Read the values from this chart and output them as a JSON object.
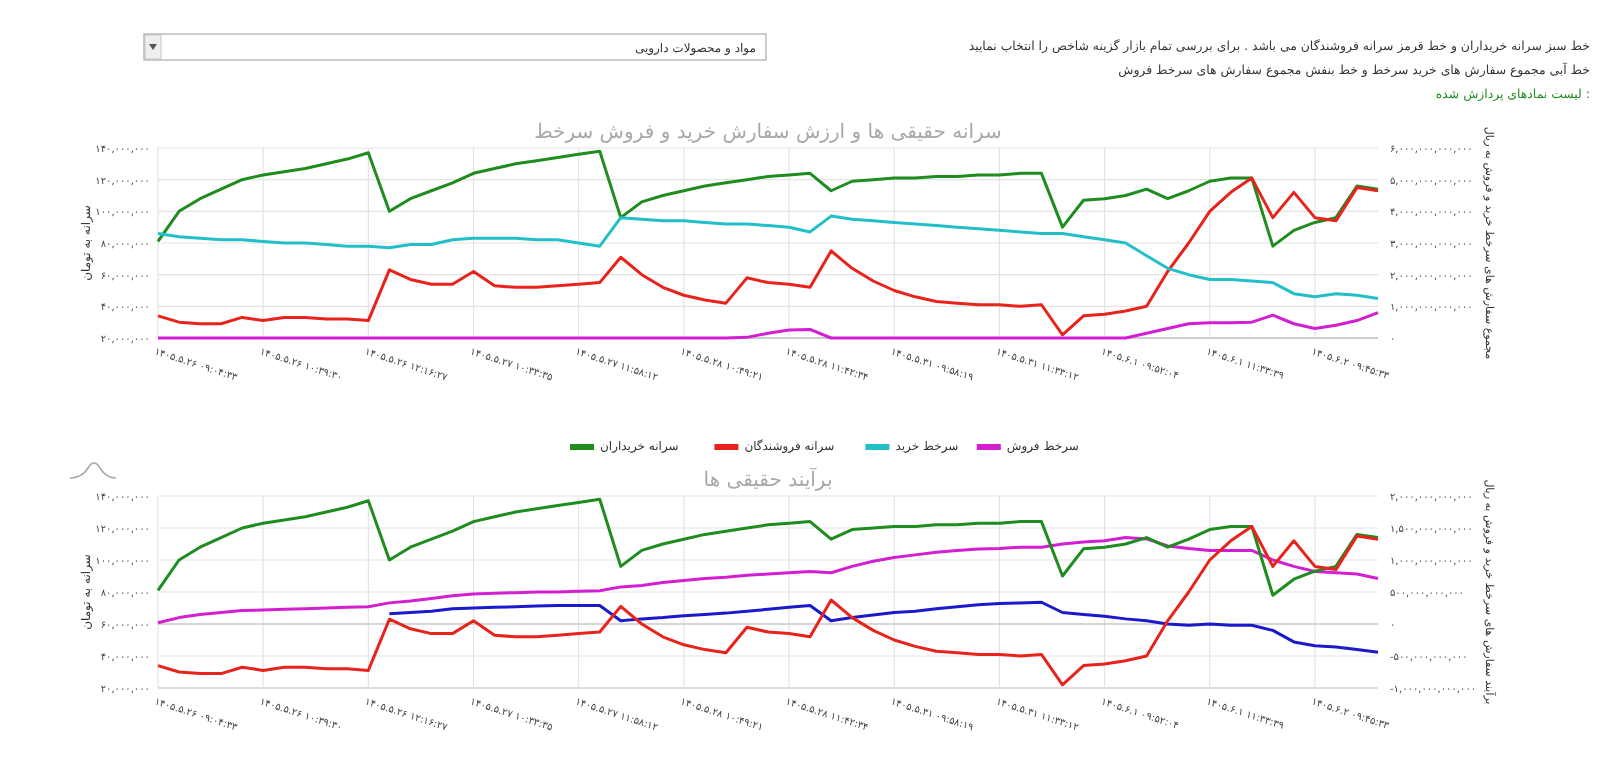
{
  "chart_data": [
    {
      "type": "line",
      "title": "سرانه حقیقی ها و ارزش سفارش خرید و فروش سرخط",
      "ylabel": "سرانه به تومان",
      "y2label": "مجموع سفارش های سرخط خرید و فروش به ریال",
      "annotations": [
        "مواد و محصولات دارویی",
        "خط سبز سرانه خریداران و خط قرمز سرانه فروشندگان می باشد . برای بررسی تمام بازار گزینه شاخص را انتخاب نمایید",
        "خط آبی مجموع سفارش های خرید سرخط و خط بنفش مجموع سفارش های سرخط فروش",
        "لیست نمادهای پردازش شده :"
      ],
      "categories": [
        "۱۴۰۵.۵.۲۶ ۰۹:۰۴:۳۳",
        null,
        null,
        null,
        null,
        "۱۴۰۵.۵.۲۶ ۱۰:۳۹:۳۰",
        null,
        null,
        null,
        null,
        "۱۴۰۵.۵.۲۶ ۱۲:۱۶:۲۷",
        null,
        null,
        null,
        null,
        "۱۴۰۵.۵.۲۷ ۱۰:۳۳:۳۵",
        null,
        null,
        null,
        null,
        "۱۴۰۵.۵.۲۷ ۱۱:۵۸:۱۲",
        null,
        null,
        null,
        null,
        "۱۴۰۵.۵.۲۸ ۱۰:۴۹:۲۱",
        null,
        null,
        null,
        null,
        "۱۴۰۵.۵.۲۸ ۱۱:۴۲:۳۴",
        null,
        null,
        null,
        null,
        "۱۴۰۵.۵.۳۱ ۰۹:۵۸:۱۹",
        null,
        null,
        null,
        null,
        "۱۴۰۵.۵.۳۱ ۱۱:۳۳:۱۲",
        null,
        null,
        null,
        null,
        "۱۴۰۵.۶.۱ ۰۹:۵۲:۰۴",
        null,
        null,
        null,
        null,
        "۱۴۰۵.۶.۱ ۱۱:۳۳:۳۹",
        null,
        null,
        null,
        null,
        "۱۴۰۵.۶.۲ ۰۹:۴۵:۳۳",
        null,
        null,
        null
      ],
      "series": [
        {
          "name": "سرانه خریداران",
          "color": "#1e8c1e",
          "values": [
            81000000.0,
            100000000.0,
            108000000.0,
            114000000.0,
            120000000.0,
            123000000.0,
            125000000.0,
            127000000.0,
            130000000.0,
            133000000.0,
            137000000.0,
            100000000.0,
            108000000.0,
            113000000.0,
            118000000.0,
            124000000.0,
            127000000.0,
            130000000.0,
            132000000.0,
            134000000.0,
            136000000.0,
            138000000.0,
            96000000.0,
            106000000.0,
            110000000.0,
            113000000.0,
            116000000.0,
            118000000.0,
            120000000.0,
            122000000.0,
            123000000.0,
            124000000.0,
            113000000.0,
            119000000.0,
            120000000.0,
            121000000.0,
            121000000.0,
            122000000.0,
            122000000.0,
            123000000.0,
            123000000.0,
            124000000.0,
            124000000.0,
            90000000.0,
            107000000.0,
            108000000.0,
            110000000.0,
            114000000.0,
            108000000.0,
            113000000.0,
            119000000.0,
            121000000.0,
            121000000.0,
            78000000.0,
            88000000.0,
            93000000.0,
            96000000.0,
            116000000.0,
            114000000.0
          ]
        },
        {
          "name": "سرانه فروشندگان",
          "color": "#e8231c",
          "values": [
            34000000.0,
            30000000.0,
            29000000.0,
            29000000.0,
            33000000.0,
            31000000.0,
            33000000.0,
            33000000.0,
            32000000.0,
            32000000.0,
            31000000.0,
            63000000.0,
            57000000.0,
            54000000.0,
            54000000.0,
            62000000.0,
            53000000.0,
            52000000.0,
            52000000.0,
            53000000.0,
            54000000.0,
            55000000.0,
            71000000.0,
            60000000.0,
            52000000.0,
            47000000.0,
            44000000.0,
            42000000.0,
            58000000.0,
            55000000.0,
            54000000.0,
            52000000.0,
            75000000.0,
            64000000.0,
            56000000.0,
            50000000.0,
            46000000.0,
            43000000.0,
            42000000.0,
            41000000.0,
            41000000.0,
            40000000.0,
            41000000.0,
            22000000.0,
            34000000.0,
            35000000.0,
            37000000.0,
            40000000.0,
            62000000.0,
            80000000.0,
            100000000.0,
            112000000.0,
            121000000.0,
            96000000.0,
            112000000.0,
            96000000.0,
            94000000.0,
            115000000.0,
            113000000.0
          ]
        },
        {
          "name": "سرخط خرید",
          "color": "#22bfc8",
          "axis": "y2",
          "values": [
            3300000000000.0,
            3200000000000.0,
            3150000000000.0,
            3100000000000.0,
            3100000000000.0,
            3050000000000.0,
            3000000000000.0,
            3000000000000.0,
            2950000000000.0,
            2900000000000.0,
            2900000000000.0,
            2850000000000.0,
            2950000000000.0,
            2950000000000.0,
            3100000000000.0,
            3150000000000.0,
            3150000000000.0,
            3150000000000.0,
            3100000000000.0,
            3100000000000.0,
            3000000000000.0,
            2900000000000.0,
            3800000000000.0,
            3750000000000.0,
            3700000000000.0,
            3700000000000.0,
            3650000000000.0,
            3600000000000.0,
            3600000000000.0,
            3550000000000.0,
            3500000000000.0,
            3350000000000.0,
            3850000000000.0,
            3750000000000.0,
            3700000000000.0,
            3650000000000.0,
            3600000000000.0,
            3550000000000.0,
            3500000000000.0,
            3450000000000.0,
            3400000000000.0,
            3350000000000.0,
            3300000000000.0,
            3300000000000.0,
            3200000000000.0,
            3100000000000.0,
            3000000000000.0,
            2600000000000.0,
            2200000000000.0,
            2000000000000.0,
            1850000000000.0,
            1850000000000.0,
            1800000000000.0,
            1750000000000.0,
            1400000000000.0,
            1300000000000.0,
            1400000000000.0,
            1350000000000.0,
            1250000000000.0
          ]
        },
        {
          "name": "سرخط فروش",
          "color": "#d21fd2",
          "axis": "y2",
          "values": [
            0,
            0,
            0,
            0,
            0,
            0,
            0,
            0,
            0,
            0,
            0,
            0,
            0,
            0,
            0,
            0,
            0,
            0,
            0,
            0,
            0,
            0,
            0,
            0,
            0,
            0,
            0,
            0,
            20000000000.0,
            150000000000.0,
            250000000000.0,
            270000000000.0,
            0,
            0,
            0,
            0,
            0,
            0,
            0,
            0,
            0,
            0,
            0,
            0,
            0,
            0,
            0,
            150000000000.0,
            300000000000.0,
            450000000000.0,
            480000000000.0,
            480000000000.0,
            500000000000.0,
            720000000000.0,
            450000000000.0,
            300000000000.0,
            400000000000.0,
            550000000000.0,
            800000000000.0
          ]
        }
      ],
      "ylim": [
        20000000,
        140000000
      ],
      "yticks": [
        {
          "value": 20000000,
          "label": "۲۰,۰۰۰,۰۰۰"
        },
        {
          "value": 40000000,
          "label": "۴۰,۰۰۰,۰۰۰"
        },
        {
          "value": 60000000,
          "label": "۶۰,۰۰۰,۰۰۰"
        },
        {
          "value": 80000000,
          "label": "۸۰,۰۰۰,۰۰۰"
        },
        {
          "value": 100000000,
          "label": "۱۰۰,۰۰۰,۰۰۰"
        },
        {
          "value": 120000000,
          "label": "۱۲۰,۰۰۰,۰۰۰"
        },
        {
          "value": 140000000,
          "label": "۱۴۰,۰۰۰,۰۰۰"
        }
      ],
      "y2lim": [
        0,
        6000000000000.0
      ],
      "y2ticks": [
        {
          "value": 0,
          "label": "۰"
        },
        {
          "value": 1000000000000.0,
          "label": "۱,۰۰۰,۰۰۰,۰۰۰,۰۰۰"
        },
        {
          "value": 2000000000000.0,
          "label": "۲,۰۰۰,۰۰۰,۰۰۰,۰۰۰"
        },
        {
          "value": 3000000000000.0,
          "label": "۳,۰۰۰,۰۰۰,۰۰۰,۰۰۰"
        },
        {
          "value": 4000000000000.0,
          "label": "۴,۰۰۰,۰۰۰,۰۰۰,۰۰۰"
        },
        {
          "value": 5000000000000.0,
          "label": "۵,۰۰۰,۰۰۰,۰۰۰,۰۰۰"
        },
        {
          "value": 6000000000000.0,
          "label": "۶,۰۰۰,۰۰۰,۰۰۰,۰۰۰"
        }
      ],
      "grid": true,
      "legend": "bottom"
    },
    {
      "type": "line",
      "title": "برآیند حقیقی ها",
      "ylabel": "سرانه به تومان",
      "y2label": "برآیند سفارش های سرخط خرید و فروش به ریال",
      "categories": [
        "۱۴۰۵.۵.۲۶ ۰۹:۰۴:۳۳",
        null,
        null,
        null,
        null,
        "۱۴۰۵.۵.۲۶ ۱۰:۳۹:۳۰",
        null,
        null,
        null,
        null,
        "۱۴۰۵.۵.۲۶ ۱۲:۱۶:۲۷",
        null,
        null,
        null,
        null,
        "۱۴۰۵.۵.۲۷ ۱۰:۳۳:۳۵",
        null,
        null,
        null,
        null,
        "۱۴۰۵.۵.۲۷ ۱۱:۵۸:۱۲",
        null,
        null,
        null,
        null,
        "۱۴۰۵.۵.۲۸ ۱۰:۴۹:۲۱",
        null,
        null,
        null,
        null,
        "۱۴۰۵.۵.۲۸ ۱۱:۴۲:۳۴",
        null,
        null,
        null,
        null,
        "۱۴۰۵.۵.۳۱ ۰۹:۵۸:۱۹",
        null,
        null,
        null,
        null,
        "۱۴۰۵.۵.۳۱ ۱۱:۳۳:۱۲",
        null,
        null,
        null,
        null,
        "۱۴۰۵.۶.۱ ۰۹:۵۲:۰۴",
        null,
        null,
        null,
        null,
        "۱۴۰۵.۶.۱ ۱۱:۳۳:۳۹",
        null,
        null,
        null,
        null,
        "۱۴۰۵.۶.۲ ۰۹:۴۵:۳۳",
        null,
        null,
        null
      ],
      "series": [
        {
          "color": "#d21fd2",
          "axis": "y2",
          "values": [
            20000000000.0,
            100000000000.0,
            150000000000.0,
            180000000000.0,
            210000000000.0,
            220000000000.0,
            230000000000.0,
            240000000000.0,
            250000000000.0,
            260000000000.0,
            270000000000.0,
            330000000000.0,
            360000000000.0,
            400000000000.0,
            440000000000.0,
            470000000000.0,
            480000000000.0,
            490000000000.0,
            500000000000.0,
            500000000000.0,
            510000000000.0,
            520000000000.0,
            580000000000.0,
            600000000000.0,
            650000000000.0,
            680000000000.0,
            710000000000.0,
            730000000000.0,
            760000000000.0,
            780000000000.0,
            800000000000.0,
            820000000000.0,
            800000000000.0,
            900000000000.0,
            980000000000.0,
            1040000000000.0,
            1080000000000.0,
            1120000000000.0,
            1150000000000.0,
            1170000000000.0,
            1180000000000.0,
            1200000000000.0,
            1200000000000.0,
            1250000000000.0,
            1280000000000.0,
            1300000000000.0,
            1350000000000.0,
            1330000000000.0,
            1220000000000.0,
            1180000000000.0,
            1150000000000.0,
            1150000000000.0,
            1150000000000.0,
            1000000000000.0,
            900000000000.0,
            820000000000.0,
            800000000000.0,
            780000000000.0,
            710000000000.0
          ]
        },
        {
          "color": "#1a1acc",
          "axis": "y2",
          "values": [
            null,
            null,
            null,
            null,
            null,
            null,
            null,
            null,
            null,
            null,
            null,
            160000000000.0,
            180000000000.0,
            200000000000.0,
            240000000000.0,
            250000000000.0,
            260000000000.0,
            270000000000.0,
            280000000000.0,
            290000000000.0,
            290000000000.0,
            290000000000.0,
            50000000000.0,
            80000000000.0,
            100000000000.0,
            130000000000.0,
            150000000000.0,
            170000000000.0,
            200000000000.0,
            230000000000.0,
            260000000000.0,
            290000000000.0,
            50000000000.0,
            100000000000.0,
            140000000000.0,
            180000000000.0,
            200000000000.0,
            240000000000.0,
            270000000000.0,
            300000000000.0,
            320000000000.0,
            330000000000.0,
            340000000000.0,
            180000000000.0,
            150000000000.0,
            120000000000.0,
            80000000000.0,
            50000000000.0,
            0,
            -20000000000.0,
            0,
            -20000000000.0,
            -20000000000.0,
            -100000000000.0,
            -280000000000.0,
            -340000000000.0,
            -360000000000.0,
            -400000000000.0,
            -440000000000.0
          ]
        },
        {
          "color": "#1e8c1e",
          "values": [
            81000000.0,
            100000000.0,
            108000000.0,
            114000000.0,
            120000000.0,
            123000000.0,
            125000000.0,
            127000000.0,
            130000000.0,
            133000000.0,
            137000000.0,
            100000000.0,
            108000000.0,
            113000000.0,
            118000000.0,
            124000000.0,
            127000000.0,
            130000000.0,
            132000000.0,
            134000000.0,
            136000000.0,
            138000000.0,
            96000000.0,
            106000000.0,
            110000000.0,
            113000000.0,
            116000000.0,
            118000000.0,
            120000000.0,
            122000000.0,
            123000000.0,
            124000000.0,
            113000000.0,
            119000000.0,
            120000000.0,
            121000000.0,
            121000000.0,
            122000000.0,
            122000000.0,
            123000000.0,
            123000000.0,
            124000000.0,
            124000000.0,
            90000000.0,
            107000000.0,
            108000000.0,
            110000000.0,
            114000000.0,
            108000000.0,
            113000000.0,
            119000000.0,
            121000000.0,
            121000000.0,
            78000000.0,
            88000000.0,
            93000000.0,
            96000000.0,
            116000000.0,
            114000000.0
          ]
        },
        {
          "color": "#e8231c",
          "values": [
            34000000.0,
            30000000.0,
            29000000.0,
            29000000.0,
            33000000.0,
            31000000.0,
            33000000.0,
            33000000.0,
            32000000.0,
            32000000.0,
            31000000.0,
            63000000.0,
            57000000.0,
            54000000.0,
            54000000.0,
            62000000.0,
            53000000.0,
            52000000.0,
            52000000.0,
            53000000.0,
            54000000.0,
            55000000.0,
            71000000.0,
            60000000.0,
            52000000.0,
            47000000.0,
            44000000.0,
            42000000.0,
            58000000.0,
            55000000.0,
            54000000.0,
            52000000.0,
            75000000.0,
            64000000.0,
            56000000.0,
            50000000.0,
            46000000.0,
            43000000.0,
            42000000.0,
            41000000.0,
            41000000.0,
            40000000.0,
            41000000.0,
            22000000.0,
            34000000.0,
            35000000.0,
            37000000.0,
            40000000.0,
            62000000.0,
            80000000.0,
            100000000.0,
            112000000.0,
            121000000.0,
            96000000.0,
            112000000.0,
            96000000.0,
            94000000.0,
            115000000.0,
            113000000.0
          ]
        }
      ],
      "ylim": [
        20000000,
        140000000
      ],
      "yticks": [
        {
          "value": 20000000,
          "label": "۲۰,۰۰۰,۰۰۰"
        },
        {
          "value": 40000000,
          "label": "۴۰,۰۰۰,۰۰۰"
        },
        {
          "value": 60000000,
          "label": "۶۰,۰۰۰,۰۰۰"
        },
        {
          "value": 80000000,
          "label": "۸۰,۰۰۰,۰۰۰"
        },
        {
          "value": 100000000,
          "label": "۱۰۰,۰۰۰,۰۰۰"
        },
        {
          "value": 120000000,
          "label": "۱۲۰,۰۰۰,۰۰۰"
        },
        {
          "value": 140000000,
          "label": "۱۴۰,۰۰۰,۰۰۰"
        }
      ],
      "y2lim": [
        -1000000000000.0,
        2000000000000.0
      ],
      "y2ticks": [
        {
          "value": -1000000000000.0,
          "label": "-۱,۰۰۰,۰۰۰,۰۰۰,۰۰۰"
        },
        {
          "value": -500000000000.0,
          "label": "-۵۰۰,۰۰۰,۰۰۰,۰۰۰"
        },
        {
          "value": 0,
          "label": "۰"
        },
        {
          "value": 500000000000.0,
          "label": "۵۰۰,۰۰۰,۰۰۰,۰۰۰"
        },
        {
          "value": 1000000000000.0,
          "label": "۱,۰۰۰,۰۰۰,۰۰۰,۰۰۰"
        },
        {
          "value": 1500000000000.0,
          "label": "۱,۵۰۰,۰۰۰,۰۰۰,۰۰۰"
        },
        {
          "value": 2000000000000.0,
          "label": "۲,۰۰۰,۰۰۰,۰۰۰,۰۰۰"
        }
      ],
      "grid": true
    }
  ]
}
